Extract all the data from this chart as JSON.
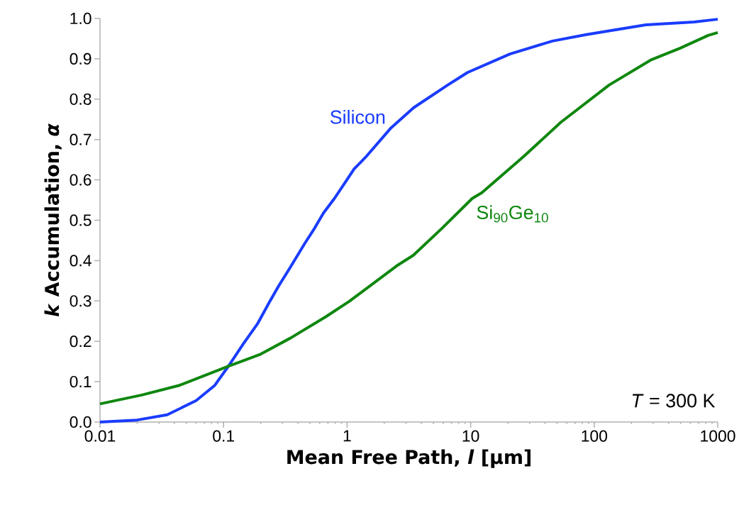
{
  "chart_data": {
    "type": "line",
    "xlabel": "Mean Free Path, *l* [μm]",
    "ylabel": "*k* Accumulation, *α*",
    "log": "x",
    "grid": false,
    "legend": false,
    "xlim": [
      0.01,
      1000
    ],
    "xticks": [
      0.01,
      0.1,
      1,
      10,
      100,
      1000
    ],
    "ylim": [
      0,
      1
    ],
    "yticks": [
      {
        "value": 0,
        "label": "0.0"
      },
      0.1,
      0.2,
      0.3,
      0.4,
      0.5,
      0.6,
      0.7,
      0.8,
      0.9,
      {
        "value": 1,
        "label": "1.0"
      }
    ],
    "annotations": [
      "*T* = 300 K"
    ],
    "series": [
      {
        "name": "Silicon",
        "color": "#1a3cff",
        "x": [
          0.01,
          0.02,
          0.035,
          0.06,
          0.085,
          0.111,
          0.144,
          0.188,
          0.234,
          0.279,
          0.348,
          0.453,
          0.545,
          0.644,
          0.79,
          1.14,
          1.41,
          2.27,
          3.46,
          6.52,
          9.42,
          20.8,
          45.9,
          86.5,
          262,
          643,
          1000
        ],
        "values": [
          0.0,
          0.005,
          0.018,
          0.053,
          0.091,
          0.141,
          0.193,
          0.243,
          0.296,
          0.337,
          0.384,
          0.442,
          0.48,
          0.518,
          0.554,
          0.627,
          0.656,
          0.729,
          0.779,
          0.835,
          0.866,
          0.912,
          0.944,
          0.96,
          0.984,
          0.991,
          0.998
        ]
      },
      {
        "name": "Si$_{90}$Ge$_{10}$",
        "color": "#0f870f",
        "x": [
          0.01,
          0.0218,
          0.044,
          0.111,
          0.196,
          0.348,
          0.673,
          1.04,
          2.52,
          3.43,
          5.86,
          10.3,
          12.3,
          27.1,
          53.8,
          132,
          291,
          493,
          837,
          1000
        ],
        "values": [
          0.045,
          0.067,
          0.091,
          0.139,
          0.167,
          0.208,
          0.261,
          0.299,
          0.387,
          0.413,
          0.48,
          0.554,
          0.568,
          0.659,
          0.743,
          0.835,
          0.898,
          0.926,
          0.958,
          0.965
        ]
      }
    ]
  }
}
